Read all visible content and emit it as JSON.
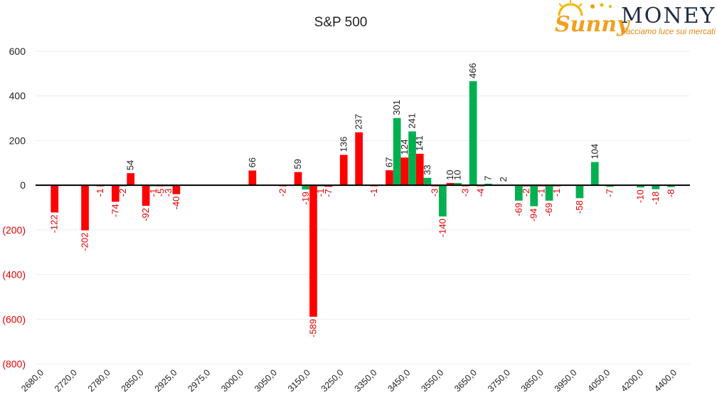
{
  "logo": {
    "word1": "Sunny",
    "word2": "MONEY",
    "tagline": "Facciamo luce sui mercati"
  },
  "colors": {
    "negative_label": "#e00000",
    "red_bar": "#ff0000",
    "green_bar": "#00b050",
    "axis": "#000000",
    "grid": "#eeeeee"
  },
  "chart_data": {
    "type": "bar",
    "title": "S&P 500",
    "ylim": [
      -800,
      600
    ],
    "yticks": [
      {
        "value": 600,
        "label": "600"
      },
      {
        "value": 400,
        "label": "400"
      },
      {
        "value": 200,
        "label": "200"
      },
      {
        "value": 0,
        "label": "0"
      },
      {
        "value": -200,
        "label": "(200)"
      },
      {
        "value": -400,
        "label": "(400)"
      },
      {
        "value": -600,
        "label": "(600)"
      },
      {
        "value": -800,
        "label": "(800)"
      }
    ],
    "grid": true,
    "xtick_labels": [
      "2680,0",
      "2720,0",
      "2780,0",
      "2850,0",
      "2925,0",
      "2975,0",
      "3000,0",
      "3050,0",
      "3150,0",
      "3250,0",
      "3350,0",
      "3450,0",
      "3550,0",
      "3650,0",
      "3750,0",
      "3850,0",
      "3950,0",
      "4050,0",
      "4200,0",
      "4400,0"
    ],
    "groups": [
      {
        "red": null,
        "green": null
      },
      {
        "red": -122,
        "green": null
      },
      {
        "red": null,
        "green": null
      },
      {
        "red": -202,
        "green": null
      },
      {
        "red": -1,
        "green": null
      },
      {
        "red": -74,
        "green": -2
      },
      {
        "red": 54,
        "green": null
      },
      {
        "red": -92,
        "green": -1
      },
      {
        "red": -5,
        "green": -3
      },
      {
        "red": -40,
        "green": null
      },
      {
        "red": null,
        "green": null
      },
      {
        "red": null,
        "green": null
      },
      {
        "red": null,
        "green": null
      },
      {
        "red": null,
        "green": null
      },
      {
        "red": 66,
        "green": null
      },
      {
        "red": null,
        "green": null
      },
      {
        "red": -2,
        "green": null
      },
      {
        "red": 59,
        "green": -19
      },
      {
        "red": -589,
        "green": -1
      },
      {
        "red": -7,
        "green": null
      },
      {
        "red": 136,
        "green": null
      },
      {
        "red": 237,
        "green": null
      },
      {
        "red": -1,
        "green": null
      },
      {
        "red": 67,
        "green": 301
      },
      {
        "red": 124,
        "green": 241
      },
      {
        "red": 141,
        "green": 33
      },
      {
        "red": -3,
        "green": -140
      },
      {
        "red": 10,
        "green": 10
      },
      {
        "red": -3,
        "green": 466
      },
      {
        "red": -4,
        "green": 7
      },
      {
        "red": null,
        "green": 2
      },
      {
        "red": null,
        "green": -69
      },
      {
        "red": -2,
        "green": -94
      },
      {
        "red": -1,
        "green": -69
      },
      {
        "red": -1,
        "green": null
      },
      {
        "red": null,
        "green": -58
      },
      {
        "red": null,
        "green": 104
      },
      {
        "red": null,
        "green": -7
      },
      {
        "red": null,
        "green": null
      },
      {
        "red": null,
        "green": -10
      },
      {
        "red": null,
        "green": -18
      },
      {
        "red": null,
        "green": -8
      },
      {
        "red": null,
        "green": null
      }
    ]
  }
}
